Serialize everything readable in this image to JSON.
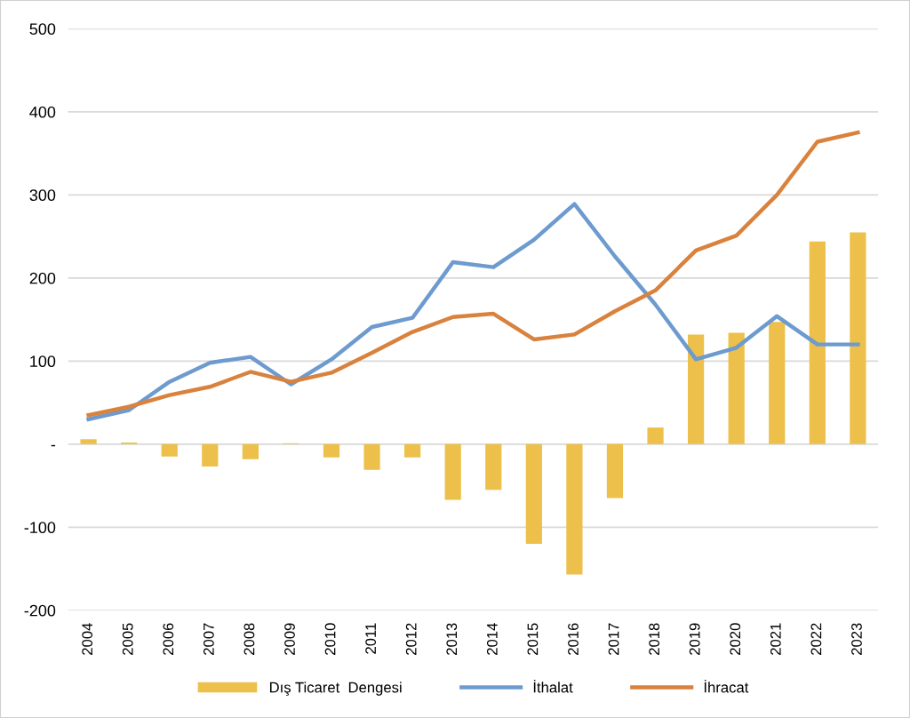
{
  "chart_data": {
    "type": "bar",
    "categories": [
      "2004",
      "2005",
      "2006",
      "2007",
      "2008",
      "2009",
      "2010",
      "2011",
      "2012",
      "2013",
      "2014",
      "2015",
      "2016",
      "2017",
      "2018",
      "2019",
      "2020",
      "2021",
      "2022",
      "2023"
    ],
    "series": [
      {
        "name": "Dış Ticaret  Dengesi",
        "color": "#ecc04a",
        "values": [
          6,
          2,
          -15,
          -27,
          -18,
          1,
          -16,
          -31,
          -16,
          -67,
          -55,
          -120,
          -157,
          -65,
          20,
          132,
          134,
          147,
          244,
          255
        ]
      },
      {
        "name": "İthalat",
        "type": "line",
        "color": "#6d9bcf",
        "values": [
          30,
          41,
          75,
          98,
          105,
          72,
          102,
          141,
          152,
          219,
          213,
          246,
          289,
          226,
          168,
          102,
          116,
          154,
          120,
          120
        ]
      },
      {
        "name": "İhracat",
        "type": "line",
        "color": "#d9823d",
        "values": [
          35,
          45,
          59,
          69,
          87,
          75,
          86,
          110,
          135,
          153,
          157,
          126,
          132,
          160,
          185,
          233,
          251,
          300,
          364,
          375
        ]
      }
    ],
    "ylim": [
      -200,
      500
    ],
    "yticks": [
      -200,
      -100,
      {
        "value": 0,
        "label": "-"
      },
      100,
      200,
      300,
      400,
      500
    ],
    "grid": "y",
    "legend": "bottom",
    "marker": "none",
    "line_style": "solid"
  }
}
